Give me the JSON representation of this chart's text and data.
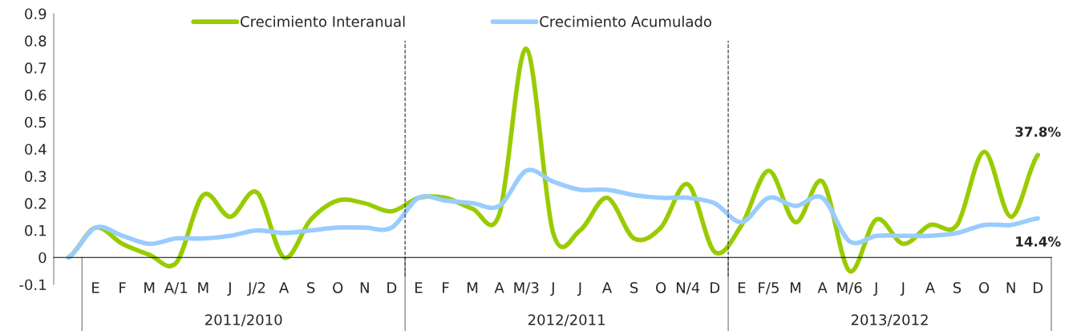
{
  "chart_data": {
    "type": "line",
    "categories": [
      null,
      "E",
      "F",
      "M",
      "A/1",
      "M",
      "J",
      "J/2",
      "A",
      "S",
      "O",
      "N",
      "D",
      "E",
      "F",
      "M",
      "A",
      "M/3",
      "J",
      "J",
      "A",
      "S",
      "O",
      "N/4",
      "D",
      "E",
      "F/5",
      "M",
      "A",
      "M/6",
      "J",
      "J",
      "A",
      "S",
      "O",
      "N",
      "D"
    ],
    "series": [
      {
        "name": "Crecimiento Interanual",
        "color": "#99cc00",
        "values": [
          0,
          0.11,
          0.05,
          0.01,
          -0.02,
          0.23,
          0.15,
          0.24,
          0.0,
          0.14,
          0.21,
          0.2,
          0.17,
          0.22,
          0.22,
          0.18,
          0.16,
          0.77,
          0.09,
          0.1,
          0.22,
          0.07,
          0.11,
          0.27,
          0.02,
          0.12,
          0.32,
          0.13,
          0.28,
          -0.05,
          0.14,
          0.05,
          0.12,
          0.12,
          0.39,
          0.15,
          0.378
        ],
        "value_labels": [
          null,
          null,
          null,
          null,
          null,
          null,
          null,
          null,
          null,
          null,
          null,
          null,
          null,
          null,
          null,
          null,
          null,
          null,
          null,
          null,
          null,
          null,
          null,
          null,
          null,
          null,
          null,
          null,
          null,
          null,
          null,
          null,
          null,
          null,
          null,
          null,
          "37.8%"
        ]
      },
      {
        "name": "Crecimiento Acumulado",
        "color": "#99ccff",
        "values": [
          0,
          0.11,
          0.08,
          0.05,
          0.07,
          0.07,
          0.08,
          0.1,
          0.09,
          0.1,
          0.11,
          0.11,
          0.11,
          0.22,
          0.21,
          0.2,
          0.19,
          0.32,
          0.28,
          0.25,
          0.25,
          0.23,
          0.22,
          0.22,
          0.2,
          0.13,
          0.22,
          0.19,
          0.22,
          0.06,
          0.08,
          0.08,
          0.08,
          0.09,
          0.12,
          0.12,
          0.144
        ],
        "value_labels": [
          null,
          null,
          null,
          null,
          null,
          null,
          null,
          null,
          null,
          null,
          null,
          null,
          null,
          null,
          null,
          null,
          null,
          null,
          null,
          null,
          null,
          null,
          null,
          null,
          null,
          null,
          null,
          null,
          null,
          null,
          null,
          null,
          null,
          null,
          null,
          null,
          "14.4%"
        ]
      }
    ],
    "ylim": [
      -0.1,
      0.9
    ],
    "yticks": [
      -0.1,
      0,
      0.1,
      0.2,
      0.3,
      0.4,
      0.5,
      0.6,
      0.7,
      0.8,
      0.9
    ],
    "annotations": [
      "2011/2010",
      "2012/2011",
      "2013/2012"
    ],
    "legend": "top",
    "grid": false,
    "marker": "none",
    "line_style": "solid"
  }
}
